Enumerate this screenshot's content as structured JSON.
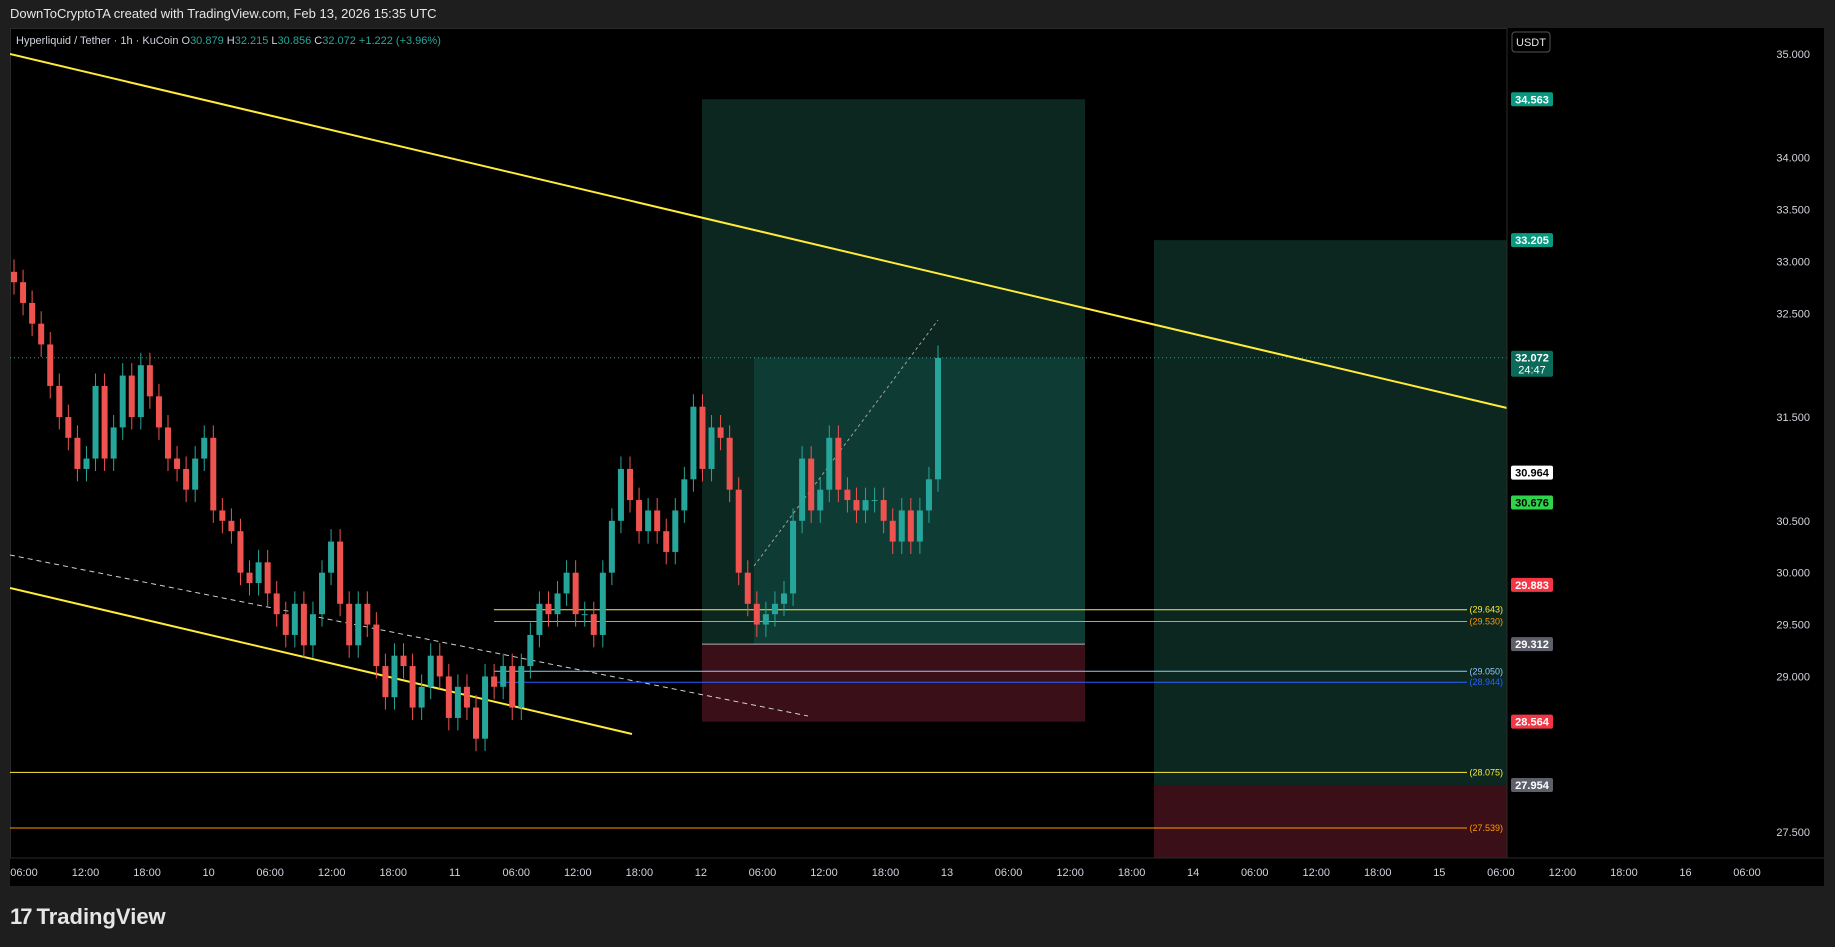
{
  "header": {
    "title": "DownToCryptoTA created with TradingView.com, Feb 13, 2026 15:35 UTC"
  },
  "footer": {
    "brand": "TradingView",
    "logo_icon": "tradingview-logo-icon"
  },
  "colors": {
    "up": "#26a69a",
    "down": "#ef5350",
    "trendline": "#ffeb3b",
    "target_zone": "#0f3b33",
    "stop_zone": "#3a0f17",
    "background": "#000000"
  },
  "chart_data": {
    "type": "candlestick",
    "symbol_line": {
      "name": "Hyperliquid / Tether · 1h · KuCoin",
      "o_label": "O",
      "o": "30.879",
      "h_label": "H",
      "h": "32.215",
      "l_label": "L",
      "l": "30.856",
      "c_label": "C",
      "c": "32.072",
      "change": "+1.222 (+3.96%)"
    },
    "currency_button": "USDT",
    "y_range": [
      27.25,
      35.25
    ],
    "y_ticks": [
      "35.000",
      "34.000",
      "33.500",
      "33.000",
      "32.500",
      "31.500",
      "30.500",
      "30.000",
      "29.500",
      "29.000",
      "27.500"
    ],
    "x_ticks": [
      "06:00",
      "12:00",
      "18:00",
      "10",
      "06:00",
      "12:00",
      "18:00",
      "11",
      "06:00",
      "12:00",
      "18:00",
      "12",
      "06:00",
      "12:00",
      "18:00",
      "13",
      "06:00",
      "12:00",
      "18:00",
      "14",
      "06:00",
      "12:00",
      "18:00",
      "15",
      "06:00",
      "12:00",
      "18:00",
      "16",
      "06:00"
    ],
    "candles": [
      [
        32.9,
        32.8
      ],
      [
        32.8,
        32.6
      ],
      [
        32.6,
        32.4
      ],
      [
        32.4,
        32.2
      ],
      [
        32.2,
        31.8
      ],
      [
        31.8,
        31.5
      ],
      [
        31.5,
        31.3
      ],
      [
        31.3,
        31.0
      ],
      [
        31.0,
        31.1
      ],
      [
        31.1,
        31.8
      ],
      [
        31.8,
        31.1
      ],
      [
        31.1,
        31.4
      ],
      [
        31.4,
        31.9
      ],
      [
        31.9,
        31.5
      ],
      [
        31.5,
        32.0
      ],
      [
        32.0,
        31.7
      ],
      [
        31.7,
        31.4
      ],
      [
        31.4,
        31.1
      ],
      [
        31.1,
        31.0
      ],
      [
        31.0,
        30.8
      ],
      [
        30.8,
        31.1
      ],
      [
        31.1,
        31.3
      ],
      [
        31.3,
        30.6
      ],
      [
        30.6,
        30.5
      ],
      [
        30.5,
        30.4
      ],
      [
        30.4,
        30.0
      ],
      [
        30.0,
        29.9
      ],
      [
        29.9,
        30.1
      ],
      [
        30.1,
        29.8
      ],
      [
        29.8,
        29.6
      ],
      [
        29.6,
        29.4
      ],
      [
        29.4,
        29.7
      ],
      [
        29.7,
        29.3
      ],
      [
        29.3,
        29.6
      ],
      [
        29.6,
        30.0
      ],
      [
        30.0,
        30.3
      ],
      [
        30.3,
        29.7
      ],
      [
        29.7,
        29.3
      ],
      [
        29.3,
        29.7
      ],
      [
        29.7,
        29.5
      ],
      [
        29.5,
        29.1
      ],
      [
        29.1,
        28.8
      ],
      [
        28.8,
        29.2
      ],
      [
        29.2,
        29.1
      ],
      [
        29.1,
        28.7
      ],
      [
        28.7,
        28.9
      ],
      [
        28.9,
        29.2
      ],
      [
        29.2,
        29.0
      ],
      [
        29.0,
        28.6
      ],
      [
        28.6,
        28.9
      ],
      [
        28.9,
        28.7
      ],
      [
        28.7,
        28.4
      ],
      [
        28.4,
        29.0
      ],
      [
        29.0,
        28.9
      ],
      [
        28.9,
        29.1
      ],
      [
        29.1,
        28.7
      ],
      [
        28.7,
        29.1
      ],
      [
        29.1,
        29.4
      ],
      [
        29.4,
        29.7
      ],
      [
        29.7,
        29.6
      ],
      [
        29.6,
        29.8
      ],
      [
        29.8,
        30.0
      ],
      [
        30.0,
        29.6
      ],
      [
        29.6,
        29.6
      ],
      [
        29.6,
        29.4
      ],
      [
        29.4,
        30.0
      ],
      [
        30.0,
        30.5
      ],
      [
        30.5,
        31.0
      ],
      [
        31.0,
        30.7
      ],
      [
        30.7,
        30.4
      ],
      [
        30.4,
        30.6
      ],
      [
        30.6,
        30.4
      ],
      [
        30.4,
        30.2
      ],
      [
        30.2,
        30.6
      ],
      [
        30.6,
        30.9
      ],
      [
        30.9,
        31.6
      ],
      [
        31.6,
        31.0
      ],
      [
        31.0,
        31.4
      ],
      [
        31.4,
        31.3
      ],
      [
        31.3,
        30.8
      ],
      [
        30.8,
        30.0
      ],
      [
        30.0,
        29.7
      ],
      [
        29.7,
        29.5
      ],
      [
        29.5,
        29.6
      ],
      [
        29.6,
        29.7
      ],
      [
        29.7,
        29.8
      ],
      [
        29.8,
        30.5
      ],
      [
        30.5,
        31.1
      ],
      [
        31.1,
        30.6
      ],
      [
        30.6,
        30.8
      ],
      [
        30.8,
        31.3
      ],
      [
        31.3,
        30.8
      ],
      [
        30.8,
        30.7
      ],
      [
        30.7,
        30.6
      ],
      [
        30.6,
        30.7
      ],
      [
        30.7,
        30.7
      ],
      [
        30.7,
        30.5
      ],
      [
        30.5,
        30.3
      ],
      [
        30.3,
        30.6
      ],
      [
        30.6,
        30.3
      ],
      [
        30.3,
        30.6
      ],
      [
        30.6,
        30.9
      ],
      [
        30.9,
        32.07
      ]
    ],
    "price_labels": [
      {
        "value": "34.563",
        "price": 34.563,
        "bg": "#089981",
        "fg": "#ffffff"
      },
      {
        "value": "33.205",
        "price": 33.205,
        "bg": "#089981",
        "fg": "#ffffff"
      },
      {
        "value": "32.072",
        "price": 32.072,
        "bg": "#0b6b5a",
        "fg": "#ffffff",
        "sub": "24:47"
      },
      {
        "value": "30.964",
        "price": 30.964,
        "bg": "#ffffff",
        "fg": "#000000"
      },
      {
        "value": "30.676",
        "price": 30.676,
        "bg": "#2ed34a",
        "fg": "#000000"
      },
      {
        "value": "29.883",
        "price": 29.883,
        "bg": "#f23645",
        "fg": "#ffffff"
      },
      {
        "value": "29.312",
        "price": 29.312,
        "bg": "#5d606b",
        "fg": "#ffffff"
      },
      {
        "value": "28.564",
        "price": 28.564,
        "bg": "#f23645",
        "fg": "#ffffff"
      },
      {
        "value": "27.954",
        "price": 27.954,
        "bg": "#5d606b",
        "fg": "#ffffff"
      }
    ],
    "level_lines": [
      {
        "label": "(29.643)",
        "price": 29.643,
        "color": "#ffeb3b"
      },
      {
        "label": "(29.530)",
        "price": 29.53,
        "color": "#ff9800"
      },
      {
        "label": "(29.050)",
        "price": 29.05,
        "color": "#90caf9"
      },
      {
        "label": "(28.944)",
        "price": 28.944,
        "color": "#2962ff"
      },
      {
        "label": "(28.075)",
        "price": 28.075,
        "color": "#ffeb3b"
      },
      {
        "label": "(27.539)",
        "price": 27.539,
        "color": "#ff9800"
      }
    ]
  }
}
